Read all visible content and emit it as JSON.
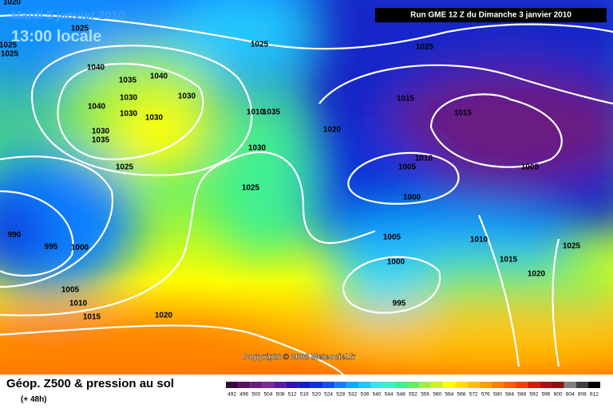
{
  "header": {
    "date": "Mardi 5 janvier 2010",
    "time": "13:00 locale",
    "run": "Run GME 12 Z du Dimanche 3 janvier 2010"
  },
  "copyright": "Copyright © 2008 Meteociel.fr",
  "isobar_labels": [
    "1020",
    "1025",
    "1025",
    "1025",
    "1025",
    "1025",
    "1040",
    "1035",
    "1040",
    "1030",
    "1030",
    "1040",
    "1030",
    "1030",
    "1030",
    "1035",
    "1010",
    "1035",
    "1015",
    "1015",
    "1020",
    "1030",
    "1025",
    "1025",
    "1005",
    "1010",
    "1005",
    "1000",
    "990",
    "995",
    "1000",
    "1005",
    "1010",
    "1025",
    "1015",
    "1000",
    "1020",
    "1005",
    "995",
    "1010",
    "1015",
    "1020"
  ],
  "legend": {
    "title": "Géop. Z500 & pression au sol",
    "subtitle": "(+ 48h)",
    "levels": [
      492,
      496,
      500,
      504,
      508,
      512,
      516,
      520,
      524,
      528,
      532,
      536,
      540,
      544,
      548,
      552,
      556,
      560,
      564,
      568,
      572,
      576,
      580,
      584,
      588,
      592,
      596,
      600,
      604,
      608,
      612
    ],
    "colors": [
      "#3a0a3a",
      "#5a1060",
      "#6e1a7e",
      "#7a2a9a",
      "#5a1aa8",
      "#3010b0",
      "#1020c0",
      "#1030d8",
      "#1050f0",
      "#1080ff",
      "#10a8ff",
      "#20c8ff",
      "#40e0f0",
      "#40f0c0",
      "#40f090",
      "#60f060",
      "#a0f040",
      "#d0f020",
      "#ffff00",
      "#ffe000",
      "#ffc000",
      "#ffa000",
      "#ff8000",
      "#ff6000",
      "#f04000",
      "#d02000",
      "#b01010",
      "#901010",
      "#808080",
      "#404040",
      "#000000"
    ]
  }
}
